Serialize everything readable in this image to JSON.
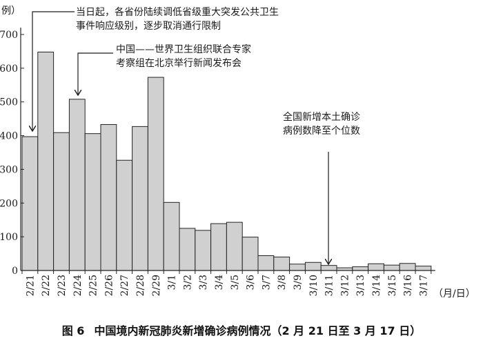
{
  "chart_data": {
    "type": "bar",
    "title": "",
    "ylabel": "例）",
    "xlabel": "（月/日）",
    "ylim": [
      0,
      700
    ],
    "yticks": [
      0,
      100,
      200,
      300,
      400,
      500,
      600,
      700
    ],
    "ytick_labels": [
      "0",
      "100",
      "200",
      "300",
      "400",
      "500",
      "600",
      "700"
    ],
    "categories": [
      "2/21",
      "2/22",
      "2/23",
      "2/24",
      "2/25",
      "2/26",
      "2/27",
      "2/28",
      "2/29",
      "3/1",
      "3/2",
      "3/3",
      "3/4",
      "3/5",
      "3/6",
      "3/7",
      "3/8",
      "3/9",
      "3/10",
      "3/11",
      "3/12",
      "3/13",
      "3/14",
      "3/15",
      "3/16",
      "3/17"
    ],
    "values": [
      397,
      648,
      409,
      508,
      406,
      433,
      327,
      427,
      573,
      202,
      125,
      119,
      139,
      143,
      99,
      44,
      40,
      19,
      24,
      15,
      8,
      11,
      20,
      16,
      21,
      13
    ],
    "bar_color": "#d0d0d0",
    "annotations": [
      {
        "category": "2/21",
        "lines": [
          "当日起，各省份陆续调低省级重大突发公共卫生",
          "事件响应级别，逐步取消通行限制"
        ]
      },
      {
        "category": "2/24",
        "lines": [
          "中国——世界卫生组织联合专家",
          "考察组在北京举行新闻发布会"
        ]
      },
      {
        "category": "3/11",
        "lines": [
          "全国新增本土确诊",
          "病例数降至个位数"
        ]
      }
    ],
    "grid": false
  },
  "caption": {
    "number": "图 6",
    "text": "中国境内新冠肺炎新增确诊病例情况（2 月 21 日至 3 月 17 日）"
  }
}
